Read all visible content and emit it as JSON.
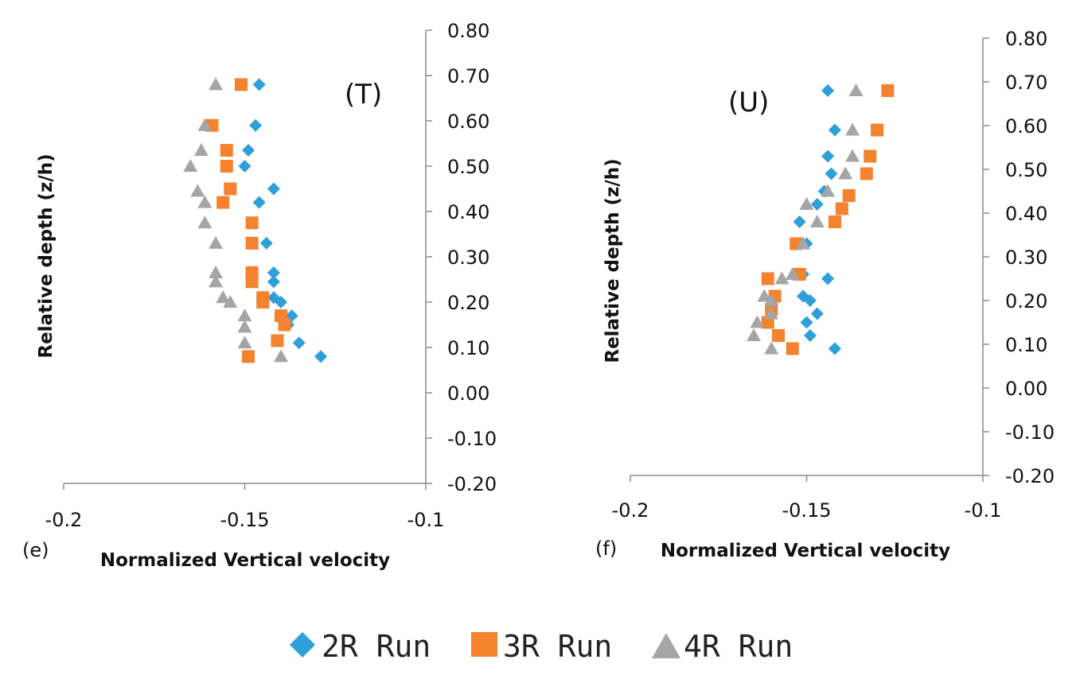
{
  "legend": [
    {
      "name": "2R Run",
      "marker": "diamond",
      "color": "#2e9fd8"
    },
    {
      "name": "3R Run",
      "marker": "square",
      "color": "#f5822f"
    },
    {
      "name": "4R Run",
      "marker": "triangle",
      "color": "#a5a5a5"
    }
  ],
  "chart_data": [
    {
      "type": "scatter",
      "panel_letter": "(e)",
      "label": "(T)",
      "xlabel": "Normalized Vertical velocity",
      "ylabel": "Relative depth (z/h)",
      "xlim": [
        -0.2,
        -0.1
      ],
      "ylim": [
        -0.2,
        0.8
      ],
      "xticks": [
        -0.2,
        -0.15,
        -0.1
      ],
      "xtick_labels": [
        "-0.2",
        "-0.15",
        "-0.1"
      ],
      "yticks": [
        -0.2,
        -0.1,
        0.0,
        0.1,
        0.2,
        0.3,
        0.4,
        0.5,
        0.6,
        0.7,
        0.8
      ],
      "ytick_labels": [
        "-0.20",
        "-0.10",
        "0.00",
        "0.10",
        "0.20",
        "0.30",
        "0.40",
        "0.50",
        "0.60",
        "0.70",
        "0.80"
      ],
      "y_axis_position": "right",
      "series": [
        {
          "name": "2R Run",
          "points": [
            [
              -0.146,
              0.68
            ],
            [
              -0.147,
              0.59
            ],
            [
              -0.149,
              0.535
            ],
            [
              -0.15,
              0.5
            ],
            [
              -0.142,
              0.45
            ],
            [
              -0.146,
              0.42
            ],
            [
              -0.144,
              0.33
            ],
            [
              -0.142,
              0.265
            ],
            [
              -0.142,
              0.245
            ],
            [
              -0.14,
              0.2
            ],
            [
              -0.142,
              0.21
            ],
            [
              -0.137,
              0.17
            ],
            [
              -0.138,
              0.15
            ],
            [
              -0.135,
              0.11
            ],
            [
              -0.129,
              0.08
            ]
          ]
        },
        {
          "name": "3R Run",
          "points": [
            [
              -0.151,
              0.68
            ],
            [
              -0.159,
              0.59
            ],
            [
              -0.155,
              0.535
            ],
            [
              -0.155,
              0.5
            ],
            [
              -0.154,
              0.45
            ],
            [
              -0.156,
              0.42
            ],
            [
              -0.148,
              0.375
            ],
            [
              -0.148,
              0.33
            ],
            [
              -0.148,
              0.265
            ],
            [
              -0.148,
              0.245
            ],
            [
              -0.145,
              0.21
            ],
            [
              -0.145,
              0.2
            ],
            [
              -0.14,
              0.17
            ],
            [
              -0.139,
              0.15
            ],
            [
              -0.141,
              0.115
            ],
            [
              -0.149,
              0.08
            ]
          ]
        },
        {
          "name": "4R Run",
          "points": [
            [
              -0.158,
              0.68
            ],
            [
              -0.161,
              0.59
            ],
            [
              -0.162,
              0.535
            ],
            [
              -0.165,
              0.5
            ],
            [
              -0.163,
              0.445
            ],
            [
              -0.161,
              0.42
            ],
            [
              -0.161,
              0.375
            ],
            [
              -0.158,
              0.33
            ],
            [
              -0.158,
              0.265
            ],
            [
              -0.158,
              0.245
            ],
            [
              -0.156,
              0.21
            ],
            [
              -0.154,
              0.2
            ],
            [
              -0.15,
              0.17
            ],
            [
              -0.15,
              0.145
            ],
            [
              -0.15,
              0.11
            ],
            [
              -0.14,
              0.08
            ]
          ]
        }
      ]
    },
    {
      "type": "scatter",
      "panel_letter": "(f)",
      "label": "(U)",
      "xlabel": "Normalized Vertical velocity",
      "ylabel": "Relative depth (z/h)",
      "xlim": [
        -0.2,
        -0.1
      ],
      "ylim": [
        -0.2,
        0.8
      ],
      "xticks": [
        -0.2,
        -0.15,
        -0.1
      ],
      "xtick_labels": [
        "-0.2",
        "-0.15",
        "-0.1"
      ],
      "yticks": [
        -0.2,
        -0.1,
        0.0,
        0.1,
        0.2,
        0.3,
        0.4,
        0.5,
        0.6,
        0.7,
        0.8
      ],
      "ytick_labels": [
        "-0.20",
        "-0.10",
        "0.00",
        "0.10",
        "0.20",
        "0.30",
        "0.40",
        "0.50",
        "0.60",
        "0.70",
        "0.80"
      ],
      "y_axis_position": "right",
      "series": [
        {
          "name": "2R Run",
          "points": [
            [
              -0.144,
              0.68
            ],
            [
              -0.142,
              0.59
            ],
            [
              -0.144,
              0.53
            ],
            [
              -0.143,
              0.49
            ],
            [
              -0.145,
              0.45
            ],
            [
              -0.147,
              0.42
            ],
            [
              -0.152,
              0.38
            ],
            [
              -0.15,
              0.33
            ],
            [
              -0.151,
              0.26
            ],
            [
              -0.144,
              0.25
            ],
            [
              -0.151,
              0.21
            ],
            [
              -0.149,
              0.2
            ],
            [
              -0.147,
              0.17
            ],
            [
              -0.15,
              0.15
            ],
            [
              -0.149,
              0.12
            ],
            [
              -0.142,
              0.09
            ]
          ]
        },
        {
          "name": "3R Run",
          "points": [
            [
              -0.127,
              0.68
            ],
            [
              -0.13,
              0.59
            ],
            [
              -0.132,
              0.53
            ],
            [
              -0.133,
              0.49
            ],
            [
              -0.138,
              0.44
            ],
            [
              -0.14,
              0.41
            ],
            [
              -0.142,
              0.38
            ],
            [
              -0.153,
              0.33
            ],
            [
              -0.152,
              0.26
            ],
            [
              -0.161,
              0.25
            ],
            [
              -0.159,
              0.21
            ],
            [
              -0.16,
              0.18
            ],
            [
              -0.161,
              0.15
            ],
            [
              -0.158,
              0.12
            ],
            [
              -0.154,
              0.09
            ]
          ]
        },
        {
          "name": "4R Run",
          "points": [
            [
              -0.136,
              0.68
            ],
            [
              -0.137,
              0.59
            ],
            [
              -0.137,
              0.53
            ],
            [
              -0.139,
              0.49
            ],
            [
              -0.144,
              0.45
            ],
            [
              -0.15,
              0.42
            ],
            [
              -0.147,
              0.38
            ],
            [
              -0.151,
              0.33
            ],
            [
              -0.154,
              0.26
            ],
            [
              -0.157,
              0.25
            ],
            [
              -0.162,
              0.21
            ],
            [
              -0.16,
              0.2
            ],
            [
              -0.16,
              0.17
            ],
            [
              -0.164,
              0.15
            ],
            [
              -0.165,
              0.12
            ],
            [
              -0.16,
              0.09
            ]
          ]
        }
      ]
    }
  ]
}
